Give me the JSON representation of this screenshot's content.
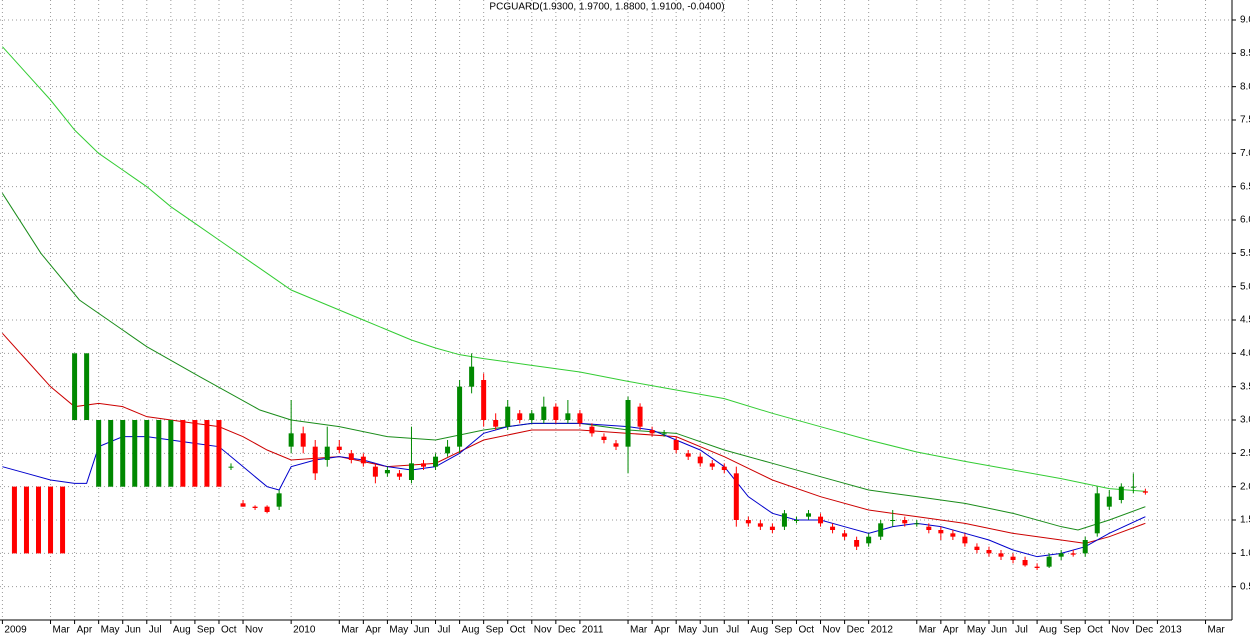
{
  "chart_data": {
    "type": "candlestick",
    "title": "PCGUARD(1.9300, 1.9700, 1.8800, 1.9100, -0.0400)",
    "xlim": [
      -0.1,
      51.1
    ],
    "ylim": [
      0,
      9.3
    ],
    "grid": true,
    "yticks": [
      0.5,
      {
        "value": 1,
        "label": "1.0"
      },
      1.5,
      {
        "value": 2,
        "label": "2.0"
      },
      2.5,
      {
        "value": 3,
        "label": "3.0"
      },
      3.5,
      {
        "value": 4,
        "label": "4.0"
      },
      4.5,
      {
        "value": 5,
        "label": "5.0"
      },
      5.5,
      {
        "value": 6,
        "label": "6.0"
      },
      6.5,
      {
        "value": 7,
        "label": "7.0"
      },
      7.5,
      {
        "value": 8,
        "label": "8.0"
      },
      8.5,
      {
        "value": 9,
        "label": "9.0"
      }
    ],
    "xticks": [
      {
        "value": 0,
        "label": "2009"
      },
      {
        "value": 2,
        "label": "Mar"
      },
      {
        "value": 3,
        "label": "Apr"
      },
      {
        "value": 4,
        "label": "May"
      },
      {
        "value": 5,
        "label": "Jun"
      },
      {
        "value": 6,
        "label": "Jul"
      },
      {
        "value": 7,
        "label": "Aug"
      },
      {
        "value": 8,
        "label": "Sep"
      },
      {
        "value": 9,
        "label": "Oct"
      },
      {
        "value": 10,
        "label": "Nov"
      },
      {
        "value": 12,
        "label": "2010"
      },
      {
        "value": 14,
        "label": "Mar"
      },
      {
        "value": 15,
        "label": "Apr"
      },
      {
        "value": 16,
        "label": "May"
      },
      {
        "value": 17,
        "label": "Jun"
      },
      {
        "value": 18,
        "label": "Jul"
      },
      {
        "value": 19,
        "label": "Aug"
      },
      {
        "value": 20,
        "label": "Sep"
      },
      {
        "value": 21,
        "label": "Oct"
      },
      {
        "value": 22,
        "label": "Nov"
      },
      {
        "value": 23,
        "label": "Dec"
      },
      {
        "value": 24,
        "label": "2011"
      },
      {
        "value": 26,
        "label": "Mar"
      },
      {
        "value": 27,
        "label": "Apr"
      },
      {
        "value": 28,
        "label": "May"
      },
      {
        "value": 29,
        "label": "Jun"
      },
      {
        "value": 30,
        "label": "Jul"
      },
      {
        "value": 31,
        "label": "Aug"
      },
      {
        "value": 32,
        "label": "Sep"
      },
      {
        "value": 33,
        "label": "Oct"
      },
      {
        "value": 34,
        "label": "Nov"
      },
      {
        "value": 35,
        "label": "Dec"
      },
      {
        "value": 36,
        "label": "2012"
      },
      {
        "value": 38,
        "label": "Mar"
      },
      {
        "value": 39,
        "label": "Apr"
      },
      {
        "value": 40,
        "label": "May"
      },
      {
        "value": 41,
        "label": "Jun"
      },
      {
        "value": 42,
        "label": "Jul"
      },
      {
        "value": 43,
        "label": "Aug"
      },
      {
        "value": 44,
        "label": "Sep"
      },
      {
        "value": 45,
        "label": "Oct"
      },
      {
        "value": 46,
        "label": "Nov"
      },
      {
        "value": 47,
        "label": "Dec"
      },
      {
        "value": 48,
        "label": "2013"
      },
      {
        "value": 50,
        "label": "Mar"
      }
    ],
    "series": [
      {
        "type": "candlestick",
        "up_color": "#008800",
        "down_color": "#ff0000",
        "x": [
          0.5,
          1,
          1.5,
          2,
          2.5,
          3,
          3.5,
          4,
          4.5,
          5,
          5.5,
          6,
          6.5,
          7,
          7.5,
          8,
          8.5,
          9,
          9.5,
          10,
          10.5,
          11,
          11.5,
          12,
          12.5,
          13,
          13.5,
          14,
          14.5,
          15,
          15.5,
          16,
          16.5,
          17,
          17.5,
          18,
          18.5,
          19,
          19.5,
          20,
          20.5,
          21,
          21.5,
          22,
          22.5,
          23,
          23.5,
          24,
          24.5,
          25,
          25.5,
          26,
          26.5,
          27,
          27.5,
          28,
          28.5,
          29,
          29.5,
          30,
          30.5,
          31,
          31.5,
          32,
          32.5,
          33,
          33.5,
          34,
          34.5,
          35,
          35.5,
          36,
          36.5,
          37,
          37.5,
          38,
          38.5,
          39,
          39.5,
          40,
          40.5,
          41,
          41.5,
          42,
          42.5,
          43,
          43.5,
          44,
          44.5,
          45,
          45.5,
          46,
          46.5,
          47,
          47.5
        ],
        "ohlc": [
          [
            2,
            2,
            1,
            1
          ],
          [
            2,
            2,
            1,
            1
          ],
          [
            2,
            2,
            1,
            1
          ],
          [
            2,
            2,
            1,
            1
          ],
          [
            2,
            2,
            1,
            1
          ],
          [
            3,
            4,
            3,
            4
          ],
          [
            3,
            4,
            3,
            4
          ],
          [
            2,
            3,
            2,
            3
          ],
          [
            2,
            3,
            2,
            3
          ],
          [
            2,
            3,
            2,
            3
          ],
          [
            2,
            3,
            2,
            3
          ],
          [
            2,
            3,
            2,
            3
          ],
          [
            2,
            3,
            2,
            3
          ],
          [
            2,
            3,
            2,
            3
          ],
          [
            3,
            3,
            2,
            2
          ],
          [
            3,
            3,
            2,
            2
          ],
          [
            3,
            3,
            2,
            2
          ],
          [
            3,
            3,
            2,
            2
          ],
          [
            2.3,
            2.35,
            2.25,
            2.3
          ],
          [
            1.75,
            1.8,
            1.7,
            1.7
          ],
          [
            1.7,
            1.72,
            1.65,
            1.68
          ],
          [
            1.7,
            1.72,
            1.6,
            1.62
          ],
          [
            1.7,
            1.95,
            1.65,
            1.9
          ],
          [
            2.6,
            3.3,
            2.5,
            2.8
          ],
          [
            2.8,
            2.9,
            2.5,
            2.6
          ],
          [
            2.6,
            2.7,
            2.1,
            2.2
          ],
          [
            2.4,
            2.9,
            2.3,
            2.6
          ],
          [
            2.6,
            2.7,
            2.5,
            2.55
          ],
          [
            2.5,
            2.55,
            2.35,
            2.4
          ],
          [
            2.45,
            2.5,
            2.3,
            2.35
          ],
          [
            2.3,
            2.35,
            2.05,
            2.15
          ],
          [
            2.2,
            2.3,
            2.15,
            2.25
          ],
          [
            2.2,
            2.25,
            2.1,
            2.15
          ],
          [
            2.1,
            2.9,
            2.05,
            2.35
          ],
          [
            2.35,
            2.4,
            2.25,
            2.3
          ],
          [
            2.3,
            2.5,
            2.25,
            2.45
          ],
          [
            2.5,
            2.7,
            2.45,
            2.6
          ],
          [
            2.6,
            3.6,
            2.5,
            3.5
          ],
          [
            3.5,
            4.0,
            3.4,
            3.8
          ],
          [
            3.6,
            3.7,
            2.9,
            3.0
          ],
          [
            3.0,
            3.1,
            2.85,
            2.9
          ],
          [
            2.9,
            3.3,
            2.85,
            3.2
          ],
          [
            3.1,
            3.15,
            2.95,
            3.0
          ],
          [
            3.0,
            3.15,
            2.95,
            3.1
          ],
          [
            3.0,
            3.35,
            2.95,
            3.2
          ],
          [
            3.2,
            3.25,
            2.95,
            3.0
          ],
          [
            3.0,
            3.3,
            2.95,
            3.1
          ],
          [
            3.1,
            3.15,
            2.9,
            2.95
          ],
          [
            2.9,
            2.95,
            2.75,
            2.8
          ],
          [
            2.75,
            2.8,
            2.65,
            2.7
          ],
          [
            2.65,
            2.7,
            2.55,
            2.6
          ],
          [
            2.6,
            3.35,
            2.2,
            3.3
          ],
          [
            3.2,
            3.25,
            2.85,
            2.9
          ],
          [
            2.85,
            2.9,
            2.75,
            2.8
          ],
          [
            2.8,
            2.85,
            2.75,
            2.8
          ],
          [
            2.7,
            2.75,
            2.5,
            2.55
          ],
          [
            2.5,
            2.55,
            2.4,
            2.45
          ],
          [
            2.45,
            2.5,
            2.3,
            2.35
          ],
          [
            2.35,
            2.4,
            2.25,
            2.3
          ],
          [
            2.3,
            2.35,
            2.2,
            2.25
          ],
          [
            2.2,
            2.3,
            1.4,
            1.5
          ],
          [
            1.5,
            1.55,
            1.4,
            1.45
          ],
          [
            1.45,
            1.5,
            1.35,
            1.4
          ],
          [
            1.4,
            1.45,
            1.3,
            1.35
          ],
          [
            1.4,
            1.65,
            1.35,
            1.6
          ],
          [
            1.5,
            1.55,
            1.45,
            1.5
          ],
          [
            1.55,
            1.65,
            1.5,
            1.6
          ],
          [
            1.55,
            1.6,
            1.4,
            1.45
          ],
          [
            1.4,
            1.45,
            1.3,
            1.35
          ],
          [
            1.3,
            1.35,
            1.2,
            1.25
          ],
          [
            1.2,
            1.25,
            1.05,
            1.1
          ],
          [
            1.15,
            1.3,
            1.1,
            1.25
          ],
          [
            1.25,
            1.5,
            1.2,
            1.45
          ],
          [
            1.5,
            1.65,
            1.4,
            1.5
          ],
          [
            1.5,
            1.55,
            1.4,
            1.45
          ],
          [
            1.45,
            1.5,
            1.4,
            1.45
          ],
          [
            1.4,
            1.45,
            1.3,
            1.35
          ],
          [
            1.35,
            1.4,
            1.2,
            1.3
          ],
          [
            1.3,
            1.35,
            1.2,
            1.25
          ],
          [
            1.25,
            1.3,
            1.1,
            1.15
          ],
          [
            1.1,
            1.15,
            1.0,
            1.05
          ],
          [
            1.05,
            1.1,
            0.95,
            1.0
          ],
          [
            1.0,
            1.05,
            0.9,
            0.95
          ],
          [
            0.95,
            1.0,
            0.85,
            0.9
          ],
          [
            0.9,
            0.95,
            0.8,
            0.82
          ],
          [
            0.8,
            0.85,
            0.75,
            0.78
          ],
          [
            0.8,
            1.0,
            0.78,
            0.95
          ],
          [
            0.95,
            1.05,
            0.9,
            1.0
          ],
          [
            1.0,
            1.05,
            0.95,
            0.98
          ],
          [
            1.0,
            1.25,
            0.95,
            1.2
          ],
          [
            1.3,
            2.0,
            1.25,
            1.9
          ],
          [
            1.7,
            1.95,
            1.65,
            1.85
          ],
          [
            1.8,
            2.05,
            1.75,
            2.0
          ],
          [
            2.0,
            2.2,
            1.9,
            2.0
          ],
          [
            1.93,
            1.97,
            1.88,
            1.91
          ]
        ]
      },
      {
        "type": "line",
        "color": "#33cc33",
        "x": [
          0,
          1,
          2,
          3,
          4,
          5,
          6,
          7,
          8,
          9,
          10,
          11,
          12,
          13,
          14,
          15,
          16,
          17,
          18,
          19,
          20,
          22,
          24,
          26,
          28,
          30,
          32,
          34,
          36,
          38,
          40,
          42,
          44,
          46,
          47.5
        ],
        "values": [
          8.6,
          8.2,
          7.8,
          7.35,
          7.0,
          6.75,
          6.5,
          6.2,
          5.95,
          5.7,
          5.45,
          5.2,
          4.95,
          4.8,
          4.65,
          4.5,
          4.35,
          4.2,
          4.08,
          3.98,
          3.92,
          3.82,
          3.72,
          3.58,
          3.45,
          3.32,
          3.1,
          2.9,
          2.7,
          2.52,
          2.38,
          2.25,
          2.12,
          1.97,
          1.93
        ]
      },
      {
        "type": "line",
        "color": "#1a8c1a",
        "x": [
          0,
          1.6,
          3.2,
          5,
          6,
          8.2,
          10.7,
          12,
          14,
          16,
          18,
          20,
          22,
          24,
          26,
          28,
          30,
          32,
          34,
          36,
          38,
          40,
          42,
          44,
          44.7,
          46,
          47.5
        ],
        "values": [
          6.4,
          5.5,
          4.8,
          4.35,
          4.1,
          3.65,
          3.15,
          3.0,
          2.9,
          2.75,
          2.7,
          2.85,
          2.95,
          2.95,
          2.85,
          2.8,
          2.55,
          2.35,
          2.15,
          1.95,
          1.85,
          1.75,
          1.6,
          1.4,
          1.35,
          1.5,
          1.7
        ]
      },
      {
        "type": "line",
        "color": "#cc0000",
        "x": [
          0,
          1,
          2,
          3,
          4,
          5,
          6,
          7,
          8,
          9,
          10,
          11,
          12,
          14,
          16,
          18,
          20,
          22,
          24,
          26,
          28,
          30,
          32,
          34,
          36,
          38,
          40,
          42,
          44,
          45,
          46,
          47.5
        ],
        "values": [
          4.3,
          3.9,
          3.5,
          3.2,
          3.25,
          3.2,
          3.05,
          3.0,
          2.95,
          2.9,
          2.75,
          2.55,
          2.4,
          2.45,
          2.3,
          2.35,
          2.7,
          2.85,
          2.85,
          2.8,
          2.75,
          2.45,
          2.1,
          1.85,
          1.65,
          1.55,
          1.45,
          1.3,
          1.2,
          1.15,
          1.25,
          1.45
        ]
      },
      {
        "type": "line",
        "color": "#0000cc",
        "x": [
          0,
          1,
          2,
          3,
          3.5,
          4,
          5,
          6,
          7,
          8,
          9,
          10,
          11,
          11.5,
          12,
          13,
          14,
          15,
          16,
          17,
          18,
          19,
          20,
          21,
          22,
          24,
          26,
          27,
          28,
          29,
          30,
          31,
          32,
          33,
          34,
          35,
          36,
          37,
          38,
          39,
          40,
          41,
          42,
          43,
          44,
          45,
          46,
          47.5
        ],
        "values": [
          2.3,
          2.2,
          2.1,
          2.05,
          2.05,
          2.6,
          2.75,
          2.75,
          2.7,
          2.65,
          2.6,
          2.3,
          2.0,
          1.95,
          2.3,
          2.4,
          2.45,
          2.4,
          2.3,
          2.25,
          2.3,
          2.5,
          2.8,
          2.9,
          2.95,
          2.95,
          2.9,
          2.85,
          2.7,
          2.55,
          2.3,
          1.85,
          1.6,
          1.5,
          1.5,
          1.4,
          1.3,
          1.4,
          1.45,
          1.4,
          1.3,
          1.2,
          1.05,
          0.95,
          1.0,
          1.1,
          1.3,
          1.55
        ]
      }
    ]
  }
}
